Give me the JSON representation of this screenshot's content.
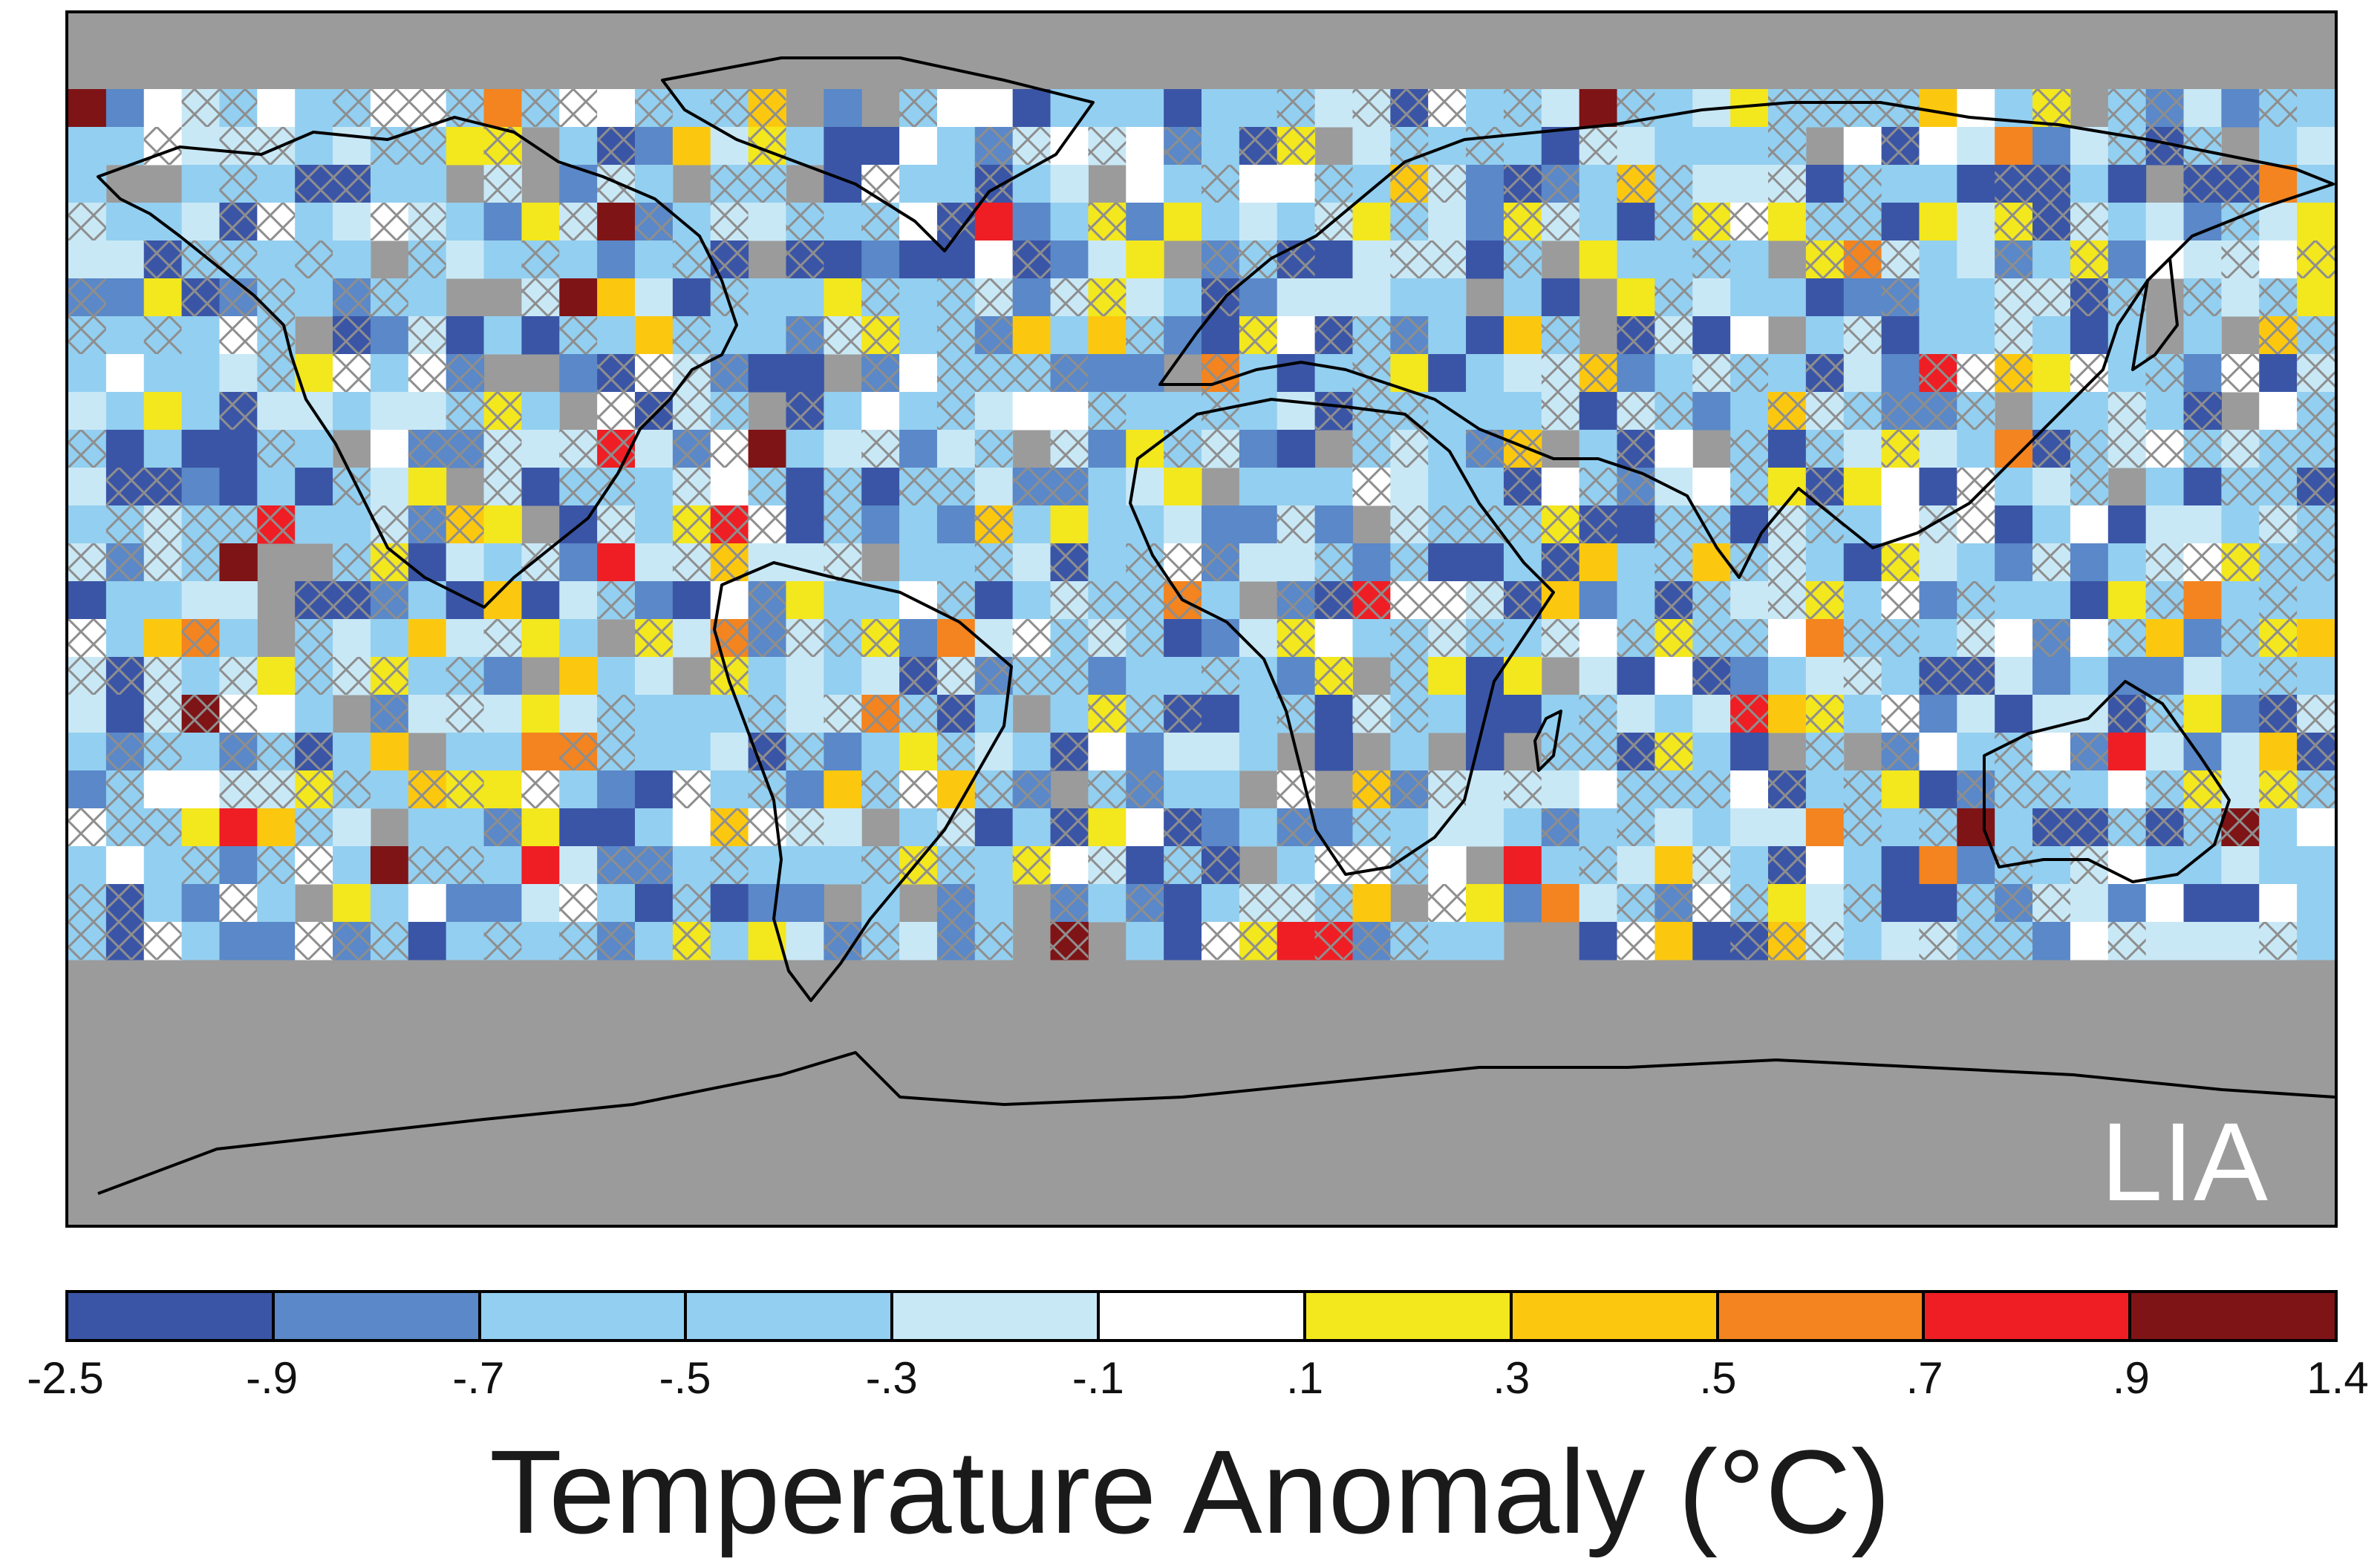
{
  "map": {
    "panel_label": "LIA",
    "background_color": "#9b9b9b",
    "grid": {
      "cols": 60,
      "rows": 32
    },
    "hatch_color": "#8e8e8e",
    "coastline_color": "#000000"
  },
  "legend": {
    "title": "Temperature Anomaly (°C)",
    "ticks": [
      "-2.5",
      "-.9",
      "-.7",
      "-.5",
      "-.3",
      "-.1",
      ".1",
      ".3",
      ".5",
      ".7",
      ".9",
      "1.4"
    ],
    "colors": [
      "#3a55a6",
      "#5a88c8",
      "#93cff0",
      "#93cff0",
      "#c9e8f6",
      "#ffffff",
      "#f3e71e",
      "#fcc80f",
      "#f3841f",
      "#ee1e24",
      "#7e1416"
    ]
  }
}
